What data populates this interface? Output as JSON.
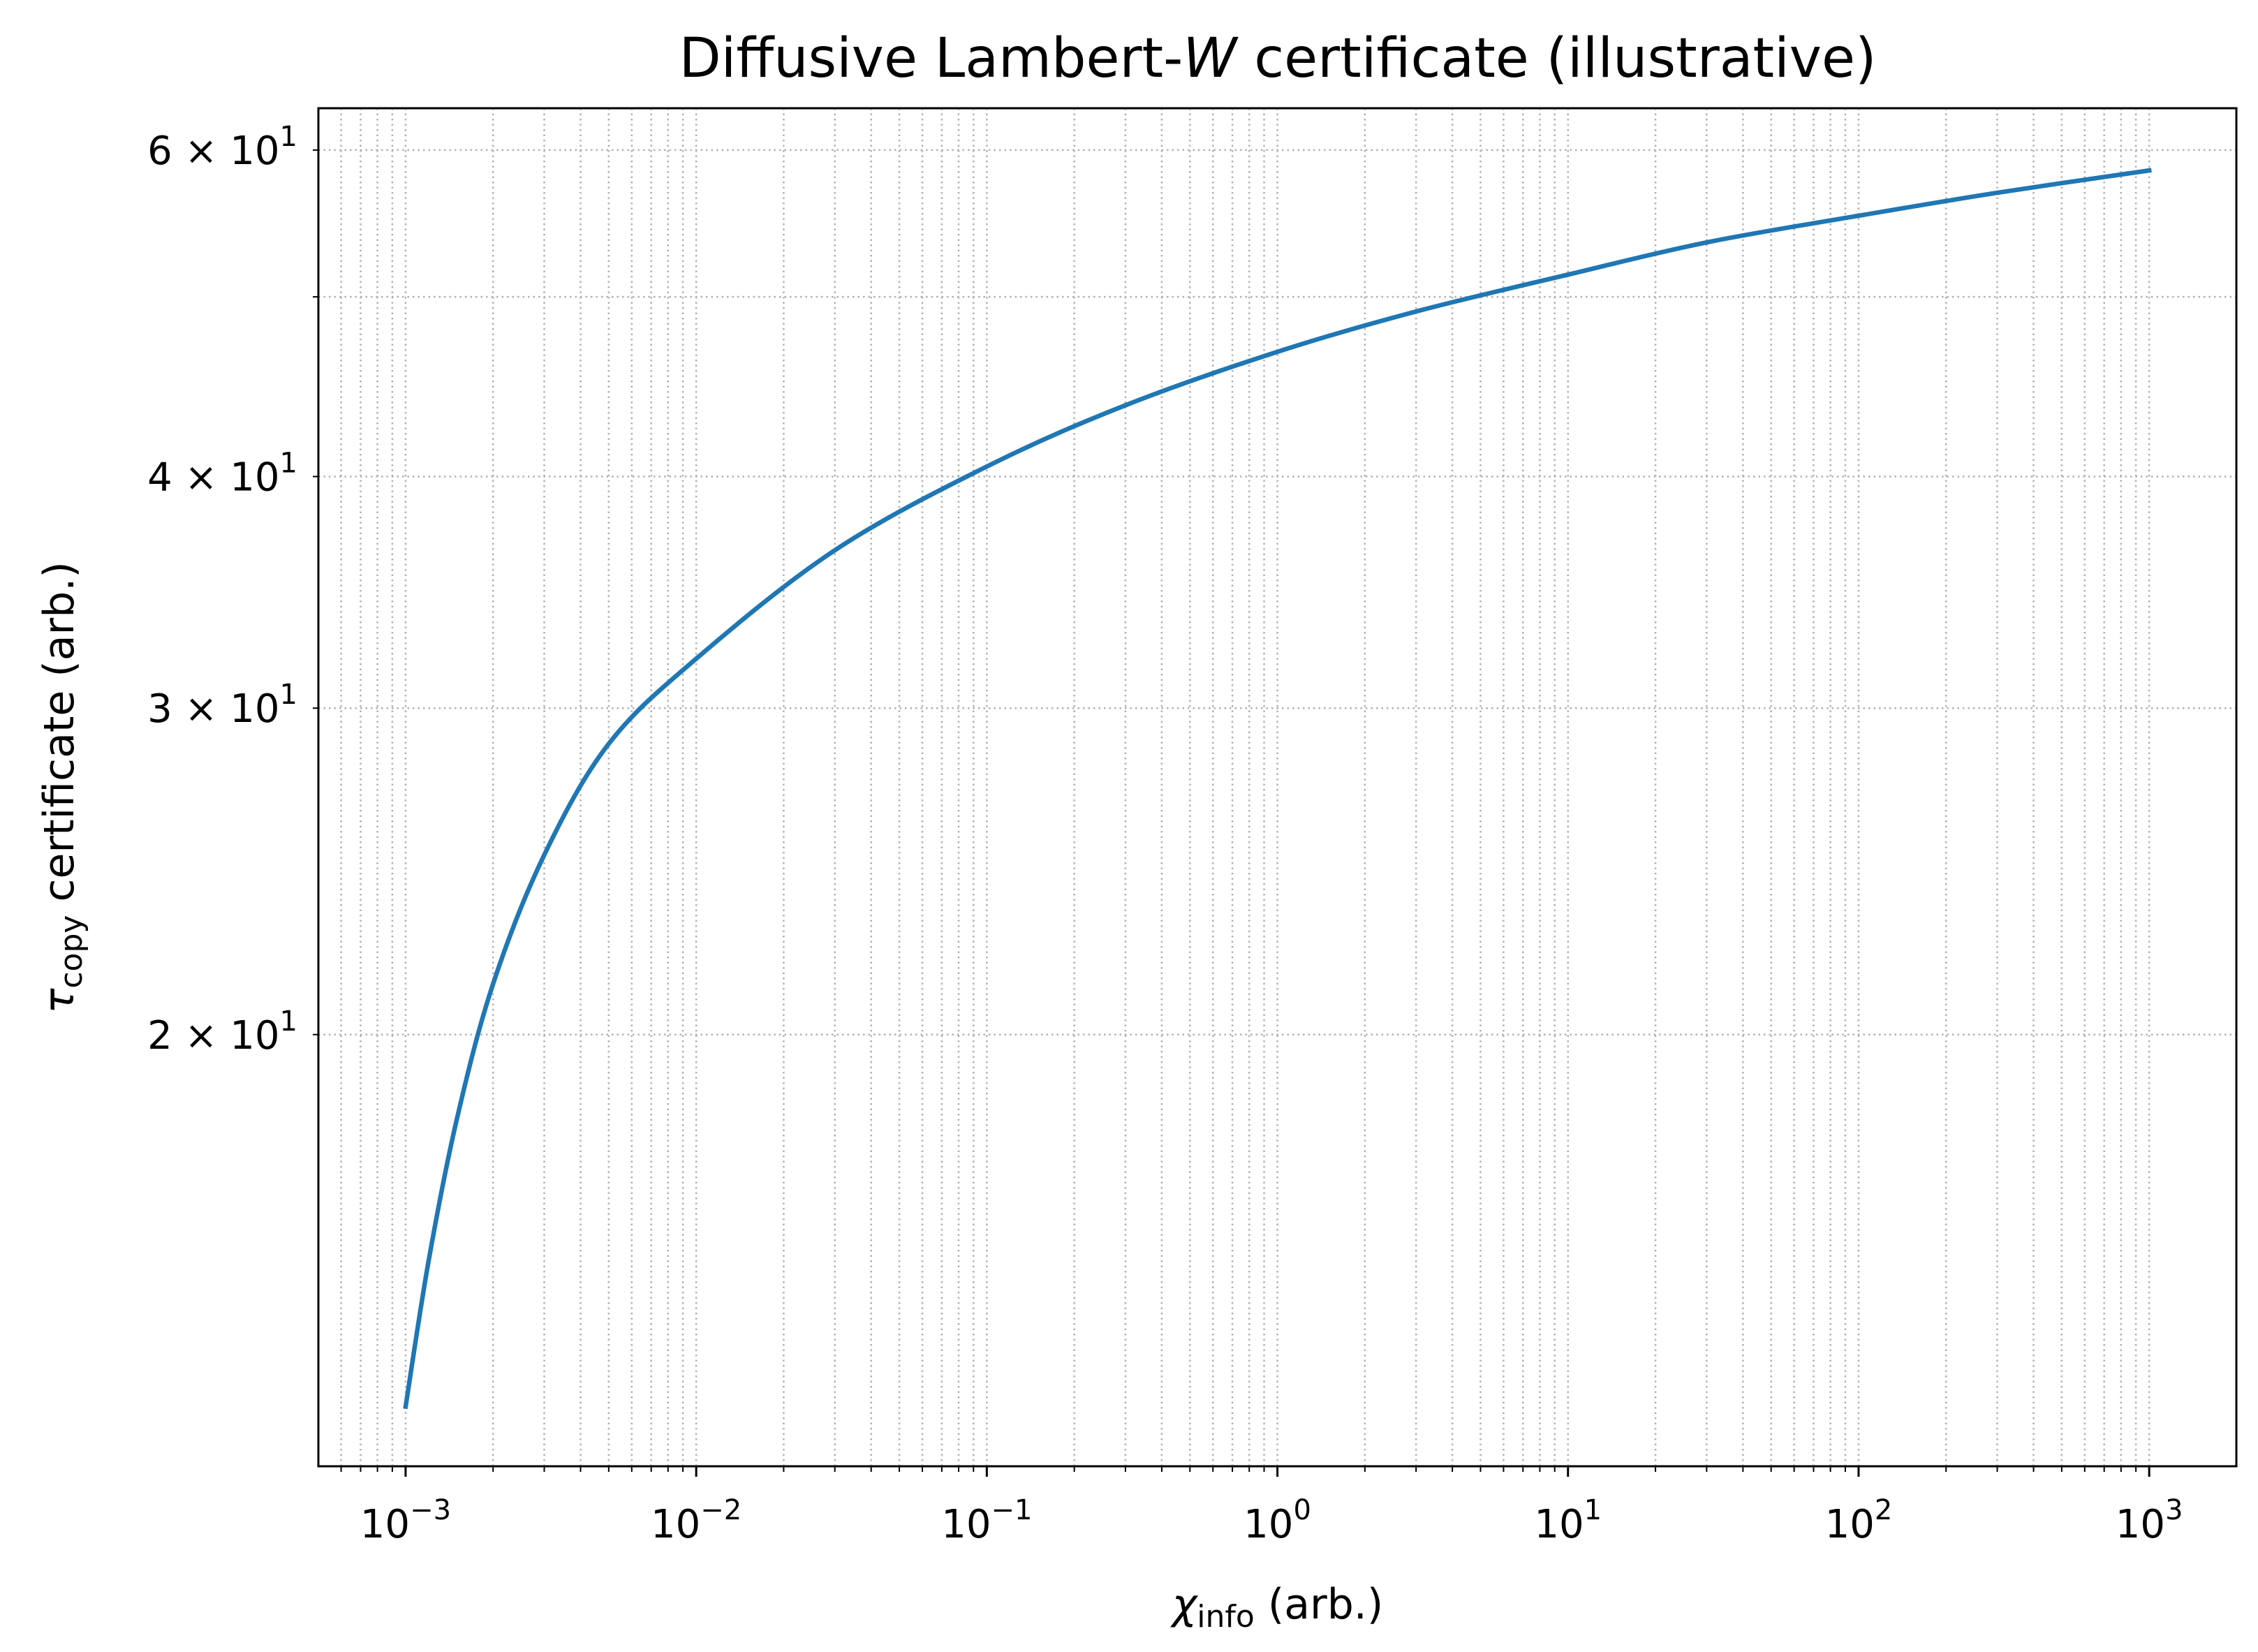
{
  "chart_data": {
    "type": "line",
    "title": [
      "Diffusive Lambert-",
      "W",
      " certificate (illustrative)"
    ],
    "xlabel": [
      "χ",
      "info",
      " (arb.)"
    ],
    "ylabel": [
      "τ",
      "copy",
      " certificate (arb.)"
    ],
    "x": [
      0.001,
      0.0012,
      0.0015,
      0.002,
      0.003,
      0.005,
      0.01,
      0.03,
      0.1,
      0.3,
      1,
      3,
      10,
      30,
      100,
      300,
      1000
    ],
    "values": [
      12.6,
      15.1,
      18.0,
      21.3,
      25.0,
      28.7,
      31.9,
      36.5,
      40.5,
      43.7,
      46.7,
      49.1,
      51.4,
      53.5,
      55.3,
      56.9,
      58.5
    ],
    "color": "#1f77b4",
    "xscale": "log",
    "yscale": "log",
    "grid": true,
    "xlim": [
      0.000501,
      1995
    ],
    "ylim": [
      11.7,
      63.2
    ],
    "xticks": [
      {
        "value": 0.001,
        "label": "10",
        "exponent": "−3"
      },
      {
        "value": 0.01,
        "label": "10",
        "exponent": "−2"
      },
      {
        "value": 0.1,
        "label": "10",
        "exponent": "−1"
      },
      {
        "value": 1,
        "label": "10",
        "exponent": "0"
      },
      {
        "value": 10,
        "label": "10",
        "exponent": "1"
      },
      {
        "value": 100,
        "label": "10",
        "exponent": "2"
      },
      {
        "value": 1000,
        "label": "10",
        "exponent": "3"
      }
    ],
    "xticks_minor": [
      0.0006,
      0.0007,
      0.0008,
      0.0009,
      0.002,
      0.003,
      0.004,
      0.005,
      0.006,
      0.007,
      0.008,
      0.009,
      0.02,
      0.03,
      0.04,
      0.05,
      0.06,
      0.07,
      0.08,
      0.09,
      0.2,
      0.3,
      0.4,
      0.5,
      0.6,
      0.7,
      0.8,
      0.9,
      2,
      3,
      4,
      5,
      6,
      7,
      8,
      9,
      20,
      30,
      40,
      50,
      60,
      70,
      80,
      90,
      200,
      300,
      400,
      500,
      600,
      700,
      800,
      900,
      2000
    ],
    "yticks": [
      {
        "value": 20,
        "label": "2 × 10",
        "exponent": "1"
      },
      {
        "value": 30,
        "label": "3 × 10",
        "exponent": "1"
      },
      {
        "value": 40,
        "label": "4 × 10",
        "exponent": "1"
      },
      {
        "value": 60,
        "label": "6 × 10",
        "exponent": "1"
      }
    ],
    "yticks_minor": [
      50
    ]
  }
}
